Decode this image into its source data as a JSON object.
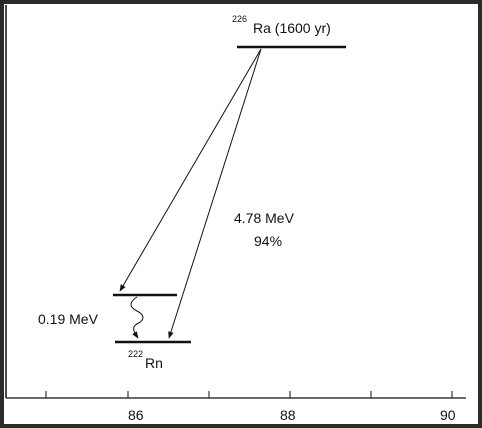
{
  "diagram": {
    "parent_label": "Ra (1600 yr)",
    "parent_mass": "226",
    "daughter_label": "Rn",
    "daughter_mass": "222",
    "decay_energy": "4.78 MeV",
    "branch_ratio": "94%",
    "gamma_energy": "0.19 MeV"
  },
  "axis": {
    "ticks": [
      "86",
      "88",
      "90"
    ]
  },
  "colors": {
    "line": "#111111",
    "background": "#ffffff",
    "border": "#2a2a2a"
  }
}
